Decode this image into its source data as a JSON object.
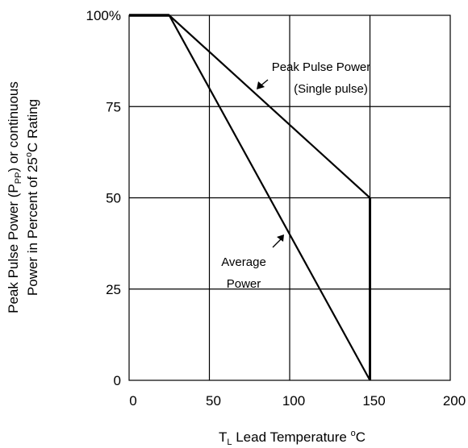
{
  "chart_data": {
    "type": "line",
    "xlabel": {
      "main": "T",
      "sub": "L",
      "rest": " Lead Temperature ",
      "deg": "o",
      "unit": "C"
    },
    "ylabel": {
      "line1": {
        "pre": "Peak Pulse Power (P",
        "sub": "PP",
        "post": ") or continuous"
      },
      "line2": {
        "pre": "Power in Percent of 25",
        "deg": "o",
        "post": "C Rating"
      }
    },
    "xlim": [
      0,
      200
    ],
    "ylim": [
      0,
      100
    ],
    "x_ticks": [
      0,
      50,
      100,
      150,
      200
    ],
    "x_tick_labels": [
      "0",
      "50",
      "100",
      "150",
      "200"
    ],
    "y_ticks": [
      0,
      25,
      50,
      75,
      100
    ],
    "y_tick_labels": [
      "0",
      "25",
      "50",
      "75",
      "100%"
    ],
    "grid": true,
    "series": [
      {
        "name": "Peak Pulse Power (Single pulse)",
        "x": [
          0,
          25,
          150,
          150
        ],
        "y": [
          100,
          100,
          50,
          0
        ]
      },
      {
        "name": "Average Power",
        "x": [
          0,
          25,
          150
        ],
        "y": [
          100,
          100,
          0
        ]
      }
    ],
    "annotations": [
      {
        "lines": [
          "Peak Pulse Power",
          "(Single pulse)"
        ],
        "target_series": "Peak Pulse Power (Single pulse)"
      },
      {
        "lines": [
          "Average",
          "Power"
        ],
        "target_series": "Average Power"
      }
    ]
  }
}
